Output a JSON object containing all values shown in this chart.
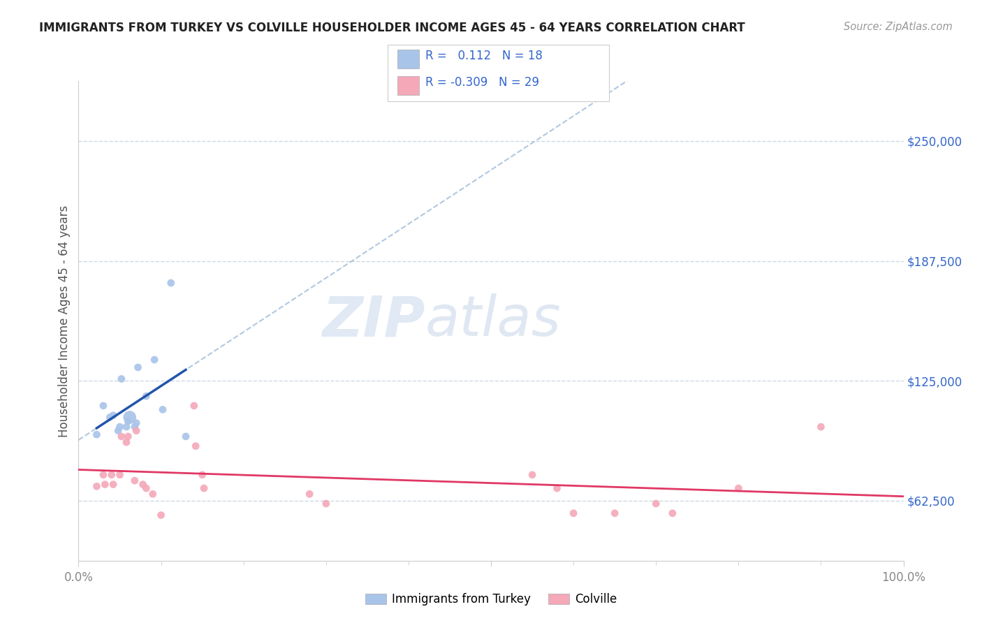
{
  "title": "IMMIGRANTS FROM TURKEY VS COLVILLE HOUSEHOLDER INCOME AGES 45 - 64 YEARS CORRELATION CHART",
  "source": "Source: ZipAtlas.com",
  "ylabel": "Householder Income Ages 45 - 64 years",
  "xlim": [
    0.0,
    1.0
  ],
  "ylim": [
    31250,
    281250
  ],
  "ytick_values": [
    62500,
    125000,
    187500,
    250000
  ],
  "ytick_labels": [
    "$62,500",
    "$125,000",
    "$187,500",
    "$250,000"
  ],
  "r_turkey": 0.112,
  "n_turkey": 18,
  "r_colville": -0.309,
  "n_colville": 29,
  "blue_dot_color": "#a8c4e8",
  "pink_dot_color": "#f4a8b8",
  "blue_line_color": "#2255aa",
  "pink_line_color": "#e03865",
  "dashed_line_color": "#b0c8e0",
  "legend_label_turkey": "Immigrants from Turkey",
  "legend_label_colville": "Colville",
  "turkey_x": [
    0.022,
    0.03,
    0.038,
    0.042,
    0.048,
    0.05,
    0.052,
    0.058,
    0.06,
    0.062,
    0.068,
    0.07,
    0.072,
    0.082,
    0.092,
    0.102,
    0.112,
    0.13
  ],
  "turkey_y": [
    97000,
    112000,
    106000,
    107000,
    99000,
    101000,
    126000,
    101000,
    104000,
    106000,
    101000,
    103000,
    132000,
    117000,
    136000,
    110000,
    176000,
    96000
  ],
  "turkey_size": [
    60,
    60,
    60,
    60,
    60,
    60,
    60,
    60,
    60,
    180,
    60,
    60,
    60,
    60,
    60,
    60,
    60,
    60
  ],
  "colville_x": [
    0.022,
    0.03,
    0.032,
    0.04,
    0.042,
    0.05,
    0.052,
    0.058,
    0.06,
    0.068,
    0.07,
    0.078,
    0.082,
    0.09,
    0.1,
    0.14,
    0.142,
    0.15,
    0.152,
    0.28,
    0.3,
    0.55,
    0.58,
    0.6,
    0.65,
    0.7,
    0.72,
    0.8,
    0.9
  ],
  "colville_y": [
    70000,
    76000,
    71000,
    76000,
    71000,
    76000,
    96000,
    93000,
    96000,
    73000,
    99000,
    71000,
    69000,
    66000,
    55000,
    112000,
    91000,
    76000,
    69000,
    66000,
    61000,
    76000,
    69000,
    56000,
    56000,
    61000,
    56000,
    69000,
    101000
  ],
  "colville_size": [
    60,
    60,
    60,
    60,
    60,
    60,
    60,
    60,
    60,
    60,
    60,
    60,
    60,
    60,
    60,
    60,
    60,
    60,
    60,
    60,
    60,
    60,
    60,
    60,
    60,
    60,
    60,
    60,
    60
  ],
  "watermark_zip": "ZIP",
  "watermark_atlas": "atlas",
  "background_color": "#ffffff",
  "grid_color": "#ccd8e4",
  "axis_color": "#cccccc",
  "tick_color": "#888888",
  "label_color": "#555555",
  "title_color": "#222222",
  "source_color": "#999999",
  "legend_text_color": "#3366cc",
  "ytick_color": "#3366cc"
}
